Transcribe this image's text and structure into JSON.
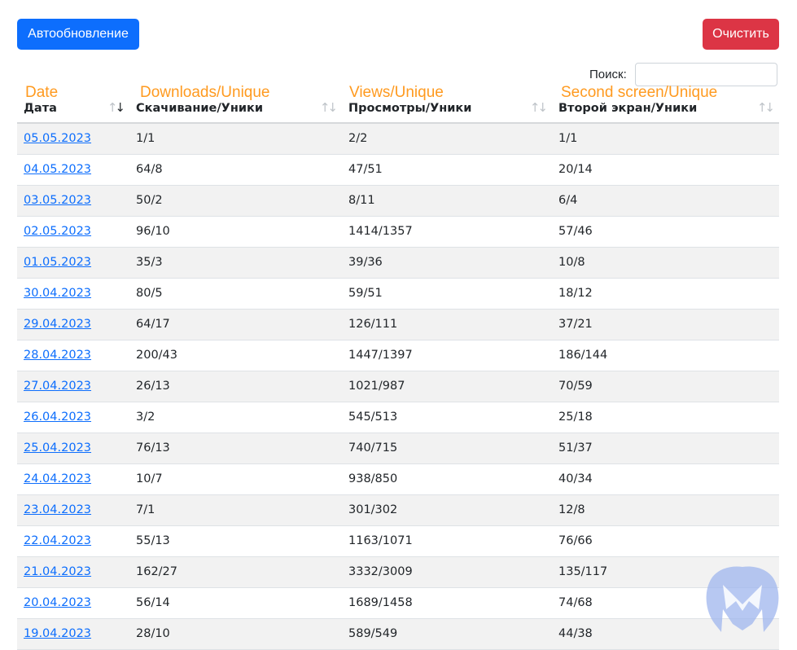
{
  "toolbar": {
    "auto_refresh_label": "Автообновление",
    "clear_label": "Очистить",
    "auto_refresh_color": "#0d6efd",
    "clear_color": "#dc3545"
  },
  "search": {
    "label": "Поиск:",
    "value": ""
  },
  "annotations": [
    "Date",
    "Downloads/Unique",
    "Views/Unique",
    "Second screen/Unique"
  ],
  "annotation_color": "#ff9a1f",
  "table": {
    "headers": [
      "Дата",
      "Скачивание/Уники",
      "Просмотры/Уники",
      "Второй экран/Уники"
    ],
    "rows": [
      [
        "05.05.2023",
        "1/1",
        "2/2",
        "1/1"
      ],
      [
        "04.05.2023",
        "64/8",
        "47/51",
        "20/14"
      ],
      [
        "03.05.2023",
        "50/2",
        "8/11",
        "6/4"
      ],
      [
        "02.05.2023",
        "96/10",
        "1414/1357",
        "57/46"
      ],
      [
        "01.05.2023",
        "35/3",
        "39/36",
        "10/8"
      ],
      [
        "30.04.2023",
        "80/5",
        "59/51",
        "18/12"
      ],
      [
        "29.04.2023",
        "64/17",
        "126/111",
        "37/21"
      ],
      [
        "28.04.2023",
        "200/43",
        "1447/1397",
        "186/144"
      ],
      [
        "27.04.2023",
        "26/13",
        "1021/987",
        "70/59"
      ],
      [
        "26.04.2023",
        "3/2",
        "545/513",
        "25/18"
      ],
      [
        "25.04.2023",
        "76/13",
        "740/715",
        "51/37"
      ],
      [
        "24.04.2023",
        "10/7",
        "938/850",
        "40/34"
      ],
      [
        "23.04.2023",
        "7/1",
        "301/302",
        "12/8"
      ],
      [
        "22.04.2023",
        "55/13",
        "1163/1071",
        "76/66"
      ],
      [
        "21.04.2023",
        "162/27",
        "3332/3009",
        "135/117"
      ],
      [
        "20.04.2023",
        "56/14",
        "1689/1458",
        "74/68"
      ],
      [
        "19.04.2023",
        "28/10",
        "589/549",
        "44/38"
      ]
    ]
  },
  "icons": {
    "sort": "sort-arrows-icon",
    "watermark": "malwarebytes-logo"
  }
}
